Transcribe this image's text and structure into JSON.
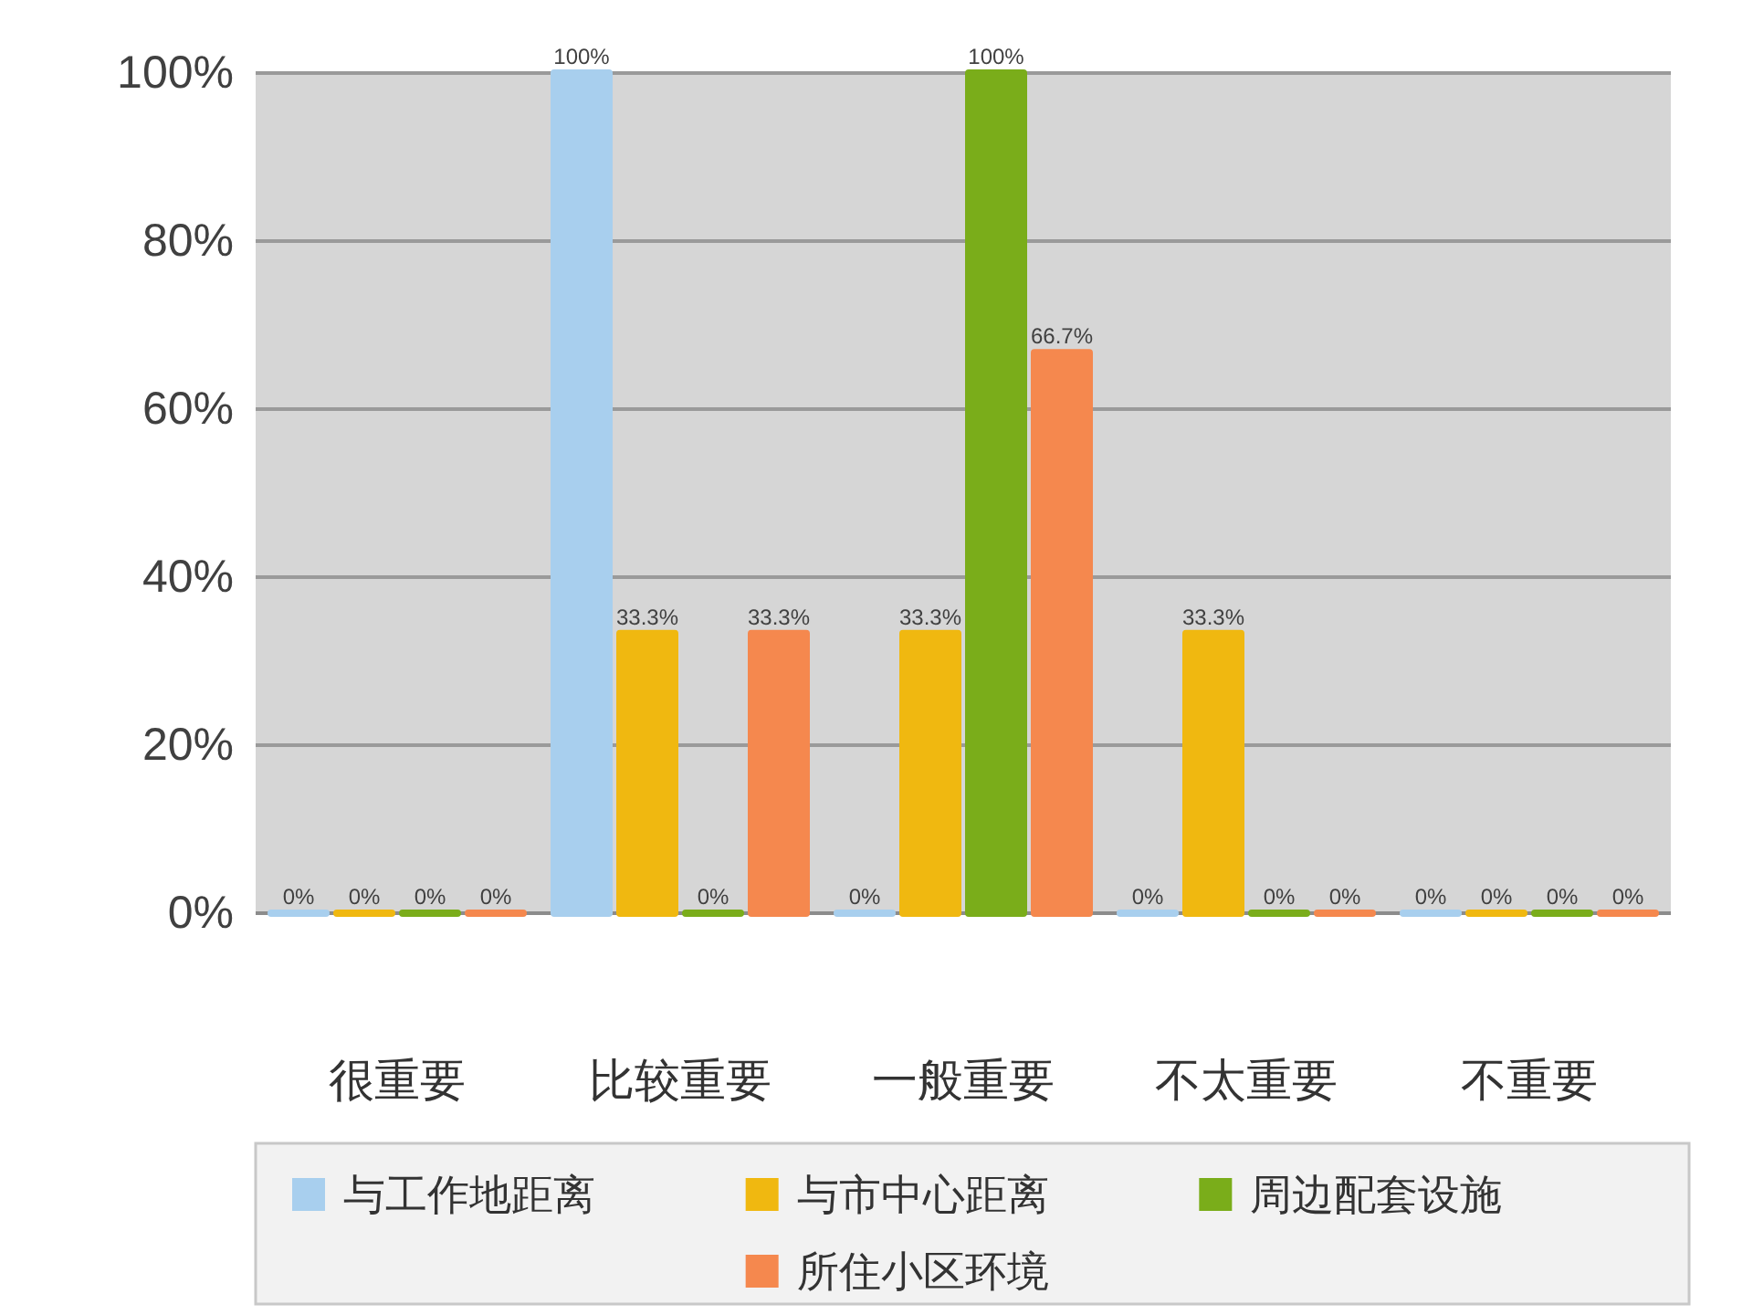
{
  "chart_data": {
    "type": "bar",
    "categories": [
      "很重要",
      "比较重要",
      "一般重要",
      "不太重要",
      "不重要"
    ],
    "series": [
      {
        "name": "与工作地距离",
        "color": "#a8cfee",
        "values": [
          0,
          100,
          0,
          0,
          0
        ],
        "value_labels": [
          "0%",
          "100%",
          "0%",
          "0%",
          "0%"
        ]
      },
      {
        "name": "与市中心距离",
        "color": "#f0b810",
        "values": [
          0,
          33.3,
          33.3,
          33.3,
          0
        ],
        "value_labels": [
          "0%",
          "33.3%",
          "33.3%",
          "33.3%",
          "0%"
        ]
      },
      {
        "name": "周边配套设施",
        "color": "#7aad1a",
        "values": [
          0,
          0,
          100,
          0,
          0
        ],
        "value_labels": [
          "0%",
          "0%",
          "100%",
          "0%",
          "0%"
        ]
      },
      {
        "name": "所住小区环境",
        "color": "#f5884e",
        "values": [
          0,
          33.3,
          66.7,
          0,
          0
        ],
        "value_labels": [
          "0%",
          "33.3%",
          "66.7%",
          "0%",
          "0%"
        ]
      }
    ],
    "ylim": [
      0,
      100
    ],
    "yticks": [
      {
        "value": 0,
        "label": "0%"
      },
      {
        "value": 20,
        "label": "20%"
      },
      {
        "value": 40,
        "label": "40%"
      },
      {
        "value": 60,
        "label": "60%"
      },
      {
        "value": 80,
        "label": "80%"
      },
      {
        "value": 100,
        "label": "100%"
      }
    ],
    "grid": "y",
    "legend": "bottom"
  }
}
